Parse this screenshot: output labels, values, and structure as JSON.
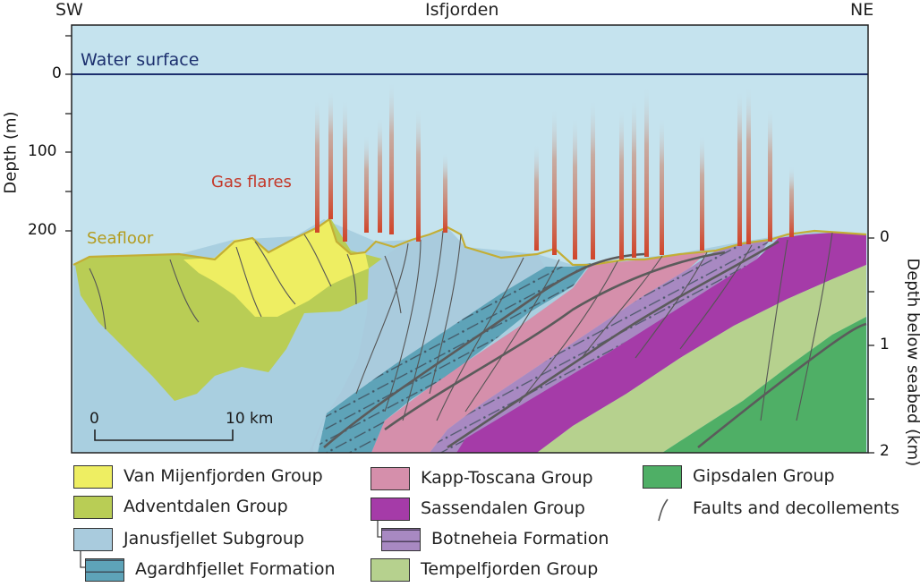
{
  "header": {
    "left": "SW",
    "center": "Isfjorden",
    "right": "NE"
  },
  "water_surface_label": "Water surface",
  "seafloor_label": "Seafloor",
  "gas_flares_label": "Gas flares",
  "left_axis": {
    "title": "Depth (m)",
    "ticks": [
      "0",
      "100",
      "200"
    ]
  },
  "right_axis": {
    "title": "Depth below seabed (km)",
    "ticks": [
      "0",
      "1",
      "2"
    ]
  },
  "scale_bar": {
    "start": "0",
    "end": "10 km"
  },
  "colors": {
    "water": "#c5e3ee",
    "basement": "#a9cfe0",
    "van_mijenfjorden": "#eeee62",
    "adventdalen": "#b9cd55",
    "janusfjellet": "#a9cbdd",
    "agardhfjellet": "#5ea3b8",
    "kapp_toscana": "#d58fab",
    "sassendalen": "#a53ba8",
    "botneheia": "#a889c2",
    "tempelfjorden": "#b6d18e",
    "gipsdalen": "#4faf66",
    "flare": "#d0452a",
    "fault": "#555555",
    "seafloor_line": "#c3ae35",
    "water_line": "#1c2f6e"
  },
  "legend": [
    {
      "label": "Van Mijenfjorden Group",
      "swatch": "van_mijenfjorden"
    },
    {
      "label": "Adventdalen Group",
      "swatch": "adventdalen"
    },
    {
      "label": "Janusfjellet Subgroup",
      "swatch": "janusfjellet"
    },
    {
      "label": "Agardhfjellet Formation",
      "swatch": "agardhfjellet"
    },
    {
      "label": "Kapp-Toscana Group",
      "swatch": "kapp_toscana"
    },
    {
      "label": "Sassendalen Group",
      "swatch": "sassendalen"
    },
    {
      "label": "Botneheia Formation",
      "swatch": "botneheia"
    },
    {
      "label": "Tempelfjorden Group",
      "swatch": "tempelfjorden"
    },
    {
      "label": "Gipsdalen Group",
      "swatch": "gipsdalen"
    },
    {
      "label": "Faults and decollements",
      "swatch": "fault"
    }
  ]
}
